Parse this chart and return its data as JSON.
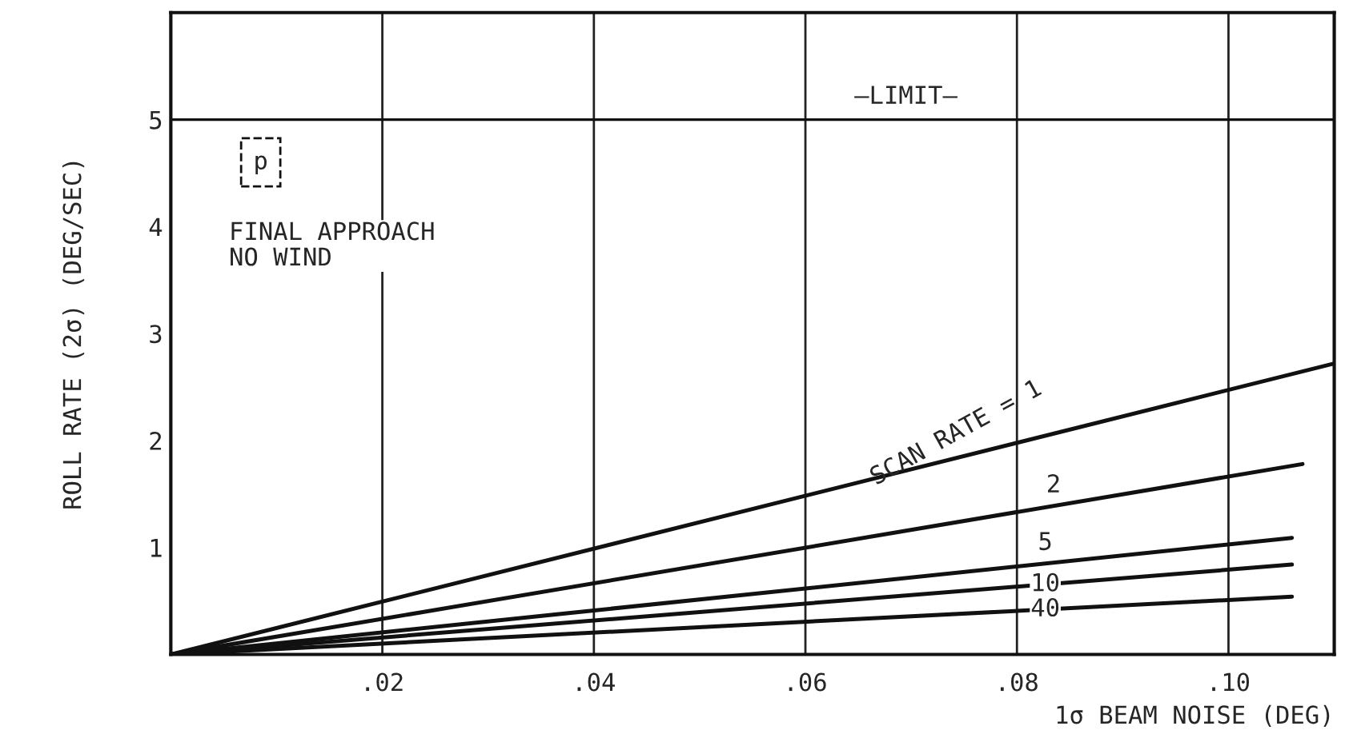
{
  "chart_data": {
    "type": "line",
    "xlabel": "1σ BEAM NOISE (DEG)",
    "ylabel": "ROLL RATE (2σ) (DEG/SEC)",
    "xlim": [
      0,
      0.11
    ],
    "ylim": [
      0,
      6
    ],
    "xticks": [
      {
        "value": 0.02,
        "label": ".02"
      },
      {
        "value": 0.04,
        "label": ".04"
      },
      {
        "value": 0.06,
        "label": ".06"
      },
      {
        "value": 0.08,
        "label": ".08"
      },
      {
        "value": 0.1,
        "label": ".10"
      }
    ],
    "yticks": [
      1,
      2,
      3,
      4,
      5
    ],
    "grid": "x",
    "legend": false,
    "line_style": "solid",
    "marker": "none",
    "series": [
      {
        "name": "SCAN RATE = 1",
        "color": "#111111",
        "x": [
          0,
          0.11
        ],
        "values": [
          0,
          2.72
        ]
      },
      {
        "name": "2",
        "color": "#111111",
        "x": [
          0,
          0.107
        ],
        "values": [
          0,
          1.78
        ]
      },
      {
        "name": "5",
        "color": "#111111",
        "x": [
          0,
          0.106
        ],
        "values": [
          0,
          1.09
        ]
      },
      {
        "name": "10",
        "color": "#111111",
        "x": [
          0,
          0.106
        ],
        "values": [
          0,
          0.84
        ]
      },
      {
        "name": "40",
        "color": "#111111",
        "x": [
          0,
          0.106
        ],
        "values": [
          0,
          0.54
        ]
      }
    ],
    "ref_lines": [
      {
        "axis": "y",
        "value": 5,
        "label": "—LIMIT—",
        "color": "#111111"
      }
    ],
    "annotations": [
      "p",
      "FINAL APPROACH\nNO WIND"
    ]
  }
}
